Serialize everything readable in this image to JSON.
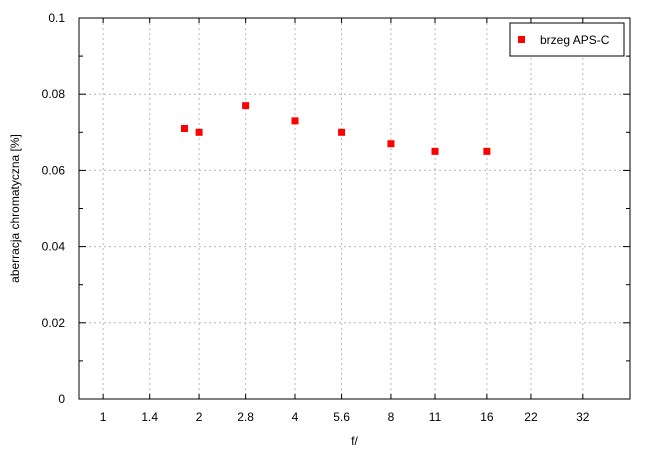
{
  "chart_data": {
    "type": "scatter",
    "title": "",
    "xlabel": "f/",
    "ylabel": "aberracja chromatyczna [%]",
    "x_scale": "log2-of-f-number",
    "x_ticks": [
      "1",
      "1.4",
      "2",
      "2.8",
      "4",
      "5.6",
      "8",
      "11",
      "16",
      "22",
      "32"
    ],
    "xlim": [
      0.84,
      45
    ],
    "y_ticks": [
      "0",
      "0.02",
      "0.04",
      "0.06",
      "0.08",
      "0.1"
    ],
    "ylim": [
      0,
      0.1
    ],
    "y_minor_step": 0.01,
    "grid": true,
    "legend_position": "top-right",
    "series": [
      {
        "name": "brzeg APS-C",
        "color": "#ff0000",
        "marker": "square",
        "points": [
          {
            "x": 1.8,
            "y": 0.071
          },
          {
            "x": 2.0,
            "y": 0.07
          },
          {
            "x": 2.8,
            "y": 0.077
          },
          {
            "x": 4.0,
            "y": 0.073
          },
          {
            "x": 5.6,
            "y": 0.07
          },
          {
            "x": 8.0,
            "y": 0.067
          },
          {
            "x": 11.0,
            "y": 0.065
          },
          {
            "x": 16.0,
            "y": 0.065
          }
        ]
      }
    ]
  }
}
